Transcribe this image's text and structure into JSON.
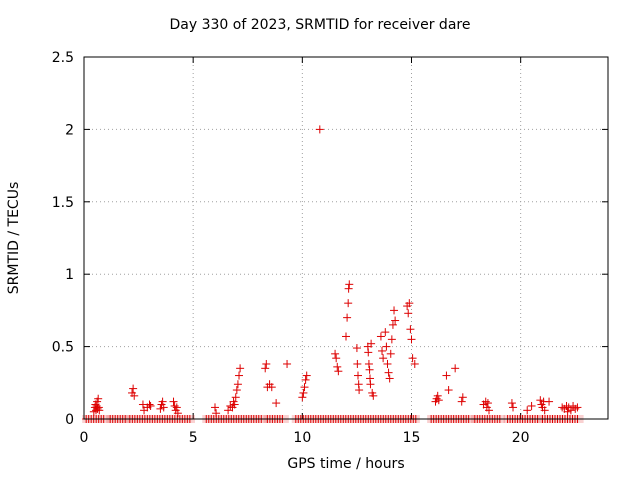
{
  "chart_data": {
    "type": "scatter",
    "title": "Day 330 of 2023, SRMTID for receiver dare",
    "xlabel": "GPS time / hours",
    "ylabel": "SRMTID / TECUs",
    "xlim": [
      0,
      24
    ],
    "ylim": [
      0,
      2.5
    ],
    "xticks": [
      0,
      5,
      10,
      15,
      20
    ],
    "xtick_labels": [
      "0",
      "5",
      "10",
      "15",
      "20"
    ],
    "yticks": [
      0,
      0.5,
      1,
      1.5,
      2,
      2.5
    ],
    "ytick_labels": [
      "0",
      "0.5",
      "1",
      "1.5",
      "2",
      "2.5"
    ],
    "grid": true,
    "marker": "+",
    "series": [
      {
        "name": "SRMTID",
        "color": "#dd0000",
        "points": [
          [
            0.45,
            0.05
          ],
          [
            0.5,
            0.08
          ],
          [
            0.52,
            0.1
          ],
          [
            0.55,
            0.06
          ],
          [
            0.58,
            0.09
          ],
          [
            0.6,
            0.12
          ],
          [
            0.62,
            0.07
          ],
          [
            0.65,
            0.14
          ],
          [
            0.68,
            0.08
          ],
          [
            0.7,
            0.06
          ],
          [
            2.2,
            0.18
          ],
          [
            2.25,
            0.21
          ],
          [
            2.3,
            0.16
          ],
          [
            2.7,
            0.1
          ],
          [
            2.75,
            0.06
          ],
          [
            2.9,
            0.08
          ],
          [
            3.0,
            0.1
          ],
          [
            3.05,
            0.09
          ],
          [
            3.5,
            0.07
          ],
          [
            3.55,
            0.1
          ],
          [
            3.6,
            0.12
          ],
          [
            3.65,
            0.08
          ],
          [
            4.1,
            0.12
          ],
          [
            4.15,
            0.09
          ],
          [
            4.2,
            0.06
          ],
          [
            4.25,
            0.08
          ],
          [
            4.3,
            0.04
          ],
          [
            6.0,
            0.08
          ],
          [
            6.05,
            0.04
          ],
          [
            6.6,
            0.06
          ],
          [
            6.7,
            0.09
          ],
          [
            6.8,
            0.08
          ],
          [
            6.85,
            0.12
          ],
          [
            6.9,
            0.1
          ],
          [
            6.95,
            0.15
          ],
          [
            7.0,
            0.2
          ],
          [
            7.05,
            0.24
          ],
          [
            7.1,
            0.3
          ],
          [
            7.15,
            0.35
          ],
          [
            8.3,
            0.35
          ],
          [
            8.35,
            0.38
          ],
          [
            8.4,
            0.22
          ],
          [
            8.5,
            0.24
          ],
          [
            8.6,
            0.22
          ],
          [
            8.8,
            0.11
          ],
          [
            9.3,
            0.38
          ],
          [
            10.0,
            0.15
          ],
          [
            10.05,
            0.18
          ],
          [
            10.1,
            0.22
          ],
          [
            10.15,
            0.27
          ],
          [
            10.2,
            0.3
          ],
          [
            10.8,
            2.0
          ],
          [
            11.5,
            0.45
          ],
          [
            11.55,
            0.42
          ],
          [
            11.6,
            0.36
          ],
          [
            11.65,
            0.33
          ],
          [
            12.0,
            0.57
          ],
          [
            12.05,
            0.7
          ],
          [
            12.1,
            0.8
          ],
          [
            12.12,
            0.9
          ],
          [
            12.15,
            0.93
          ],
          [
            12.5,
            0.49
          ],
          [
            12.52,
            0.38
          ],
          [
            12.55,
            0.3
          ],
          [
            12.58,
            0.24
          ],
          [
            12.6,
            0.2
          ],
          [
            13.0,
            0.5
          ],
          [
            13.02,
            0.46
          ],
          [
            13.05,
            0.38
          ],
          [
            13.08,
            0.34
          ],
          [
            13.1,
            0.28
          ],
          [
            13.12,
            0.24
          ],
          [
            13.15,
            0.52
          ],
          [
            13.2,
            0.18
          ],
          [
            13.25,
            0.16
          ],
          [
            13.6,
            0.57
          ],
          [
            13.65,
            0.47
          ],
          [
            13.7,
            0.42
          ],
          [
            13.8,
            0.6
          ],
          [
            13.85,
            0.5
          ],
          [
            13.9,
            0.38
          ],
          [
            13.95,
            0.32
          ],
          [
            14.0,
            0.28
          ],
          [
            14.05,
            0.45
          ],
          [
            14.1,
            0.55
          ],
          [
            14.15,
            0.65
          ],
          [
            14.2,
            0.75
          ],
          [
            14.25,
            0.68
          ],
          [
            14.8,
            0.78
          ],
          [
            14.85,
            0.73
          ],
          [
            14.9,
            0.8
          ],
          [
            14.95,
            0.62
          ],
          [
            15.0,
            0.55
          ],
          [
            15.05,
            0.42
          ],
          [
            15.15,
            0.38
          ],
          [
            16.1,
            0.12
          ],
          [
            16.15,
            0.14
          ],
          [
            16.2,
            0.16
          ],
          [
            16.25,
            0.13
          ],
          [
            16.6,
            0.3
          ],
          [
            16.7,
            0.2
          ],
          [
            17.0,
            0.35
          ],
          [
            17.3,
            0.12
          ],
          [
            17.35,
            0.15
          ],
          [
            18.3,
            0.1
          ],
          [
            18.4,
            0.12
          ],
          [
            18.45,
            0.08
          ],
          [
            18.5,
            0.11
          ],
          [
            18.55,
            0.06
          ],
          [
            19.6,
            0.11
          ],
          [
            19.65,
            0.08
          ],
          [
            20.3,
            0.06
          ],
          [
            20.5,
            0.09
          ],
          [
            20.9,
            0.13
          ],
          [
            20.95,
            0.1
          ],
          [
            21.0,
            0.08
          ],
          [
            21.05,
            0.12
          ],
          [
            21.1,
            0.06
          ],
          [
            21.3,
            0.12
          ],
          [
            21.9,
            0.08
          ],
          [
            22.0,
            0.07
          ],
          [
            22.1,
            0.09
          ],
          [
            22.15,
            0.05
          ],
          [
            22.2,
            0.08
          ],
          [
            22.3,
            0.06
          ],
          [
            22.4,
            0.09
          ],
          [
            22.5,
            0.07
          ],
          [
            22.6,
            0.08
          ]
        ],
        "zero_segments": [
          [
            0.1,
            1.0
          ],
          [
            1.2,
            1.9
          ],
          [
            2.1,
            4.9
          ],
          [
            5.6,
            8.2
          ],
          [
            8.4,
            9.2
          ],
          [
            9.7,
            15.2
          ],
          [
            15.9,
            17.7
          ],
          [
            17.9,
            19.1
          ],
          [
            19.4,
            20.8
          ],
          [
            21.0,
            22.7
          ]
        ]
      }
    ]
  }
}
